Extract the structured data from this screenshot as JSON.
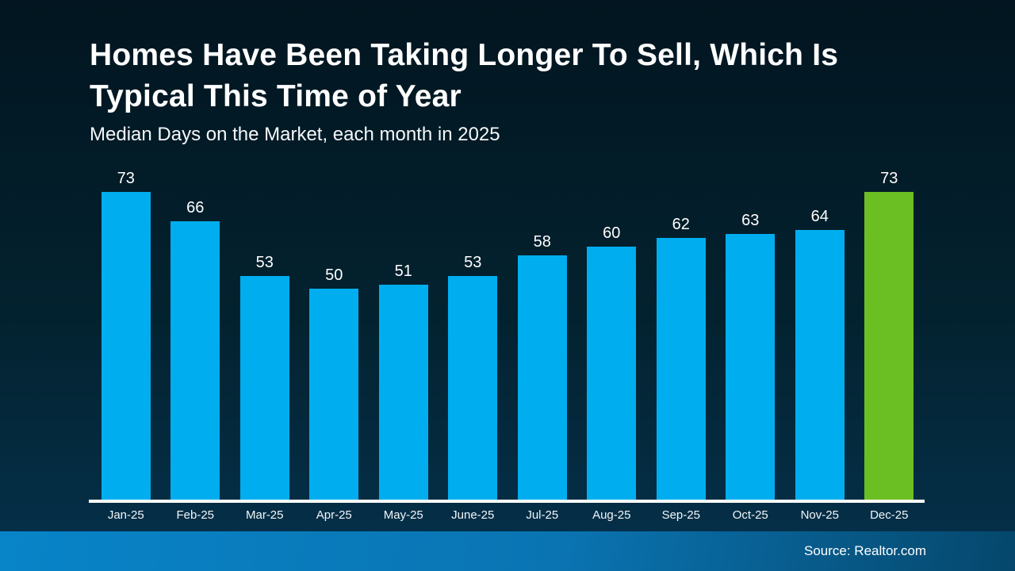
{
  "title": {
    "line1": "Homes Have Been Taking Longer To Sell, Which Is",
    "line2": "Typical This Time of Year",
    "subtitle": "Median Days on the Market, each month in 2025"
  },
  "footer": {
    "source": "Source: Realtor.com"
  },
  "colors": {
    "bar": "#00AEEF",
    "bar_highlight": "#6CBF23",
    "background_top": "#021520",
    "background_bottom": "#05304A",
    "axis_line": "#FFFFFF",
    "footer_gradient_left": "#0884C8",
    "footer_gradient_right": "#05476C",
    "text": "#FFFFFF"
  },
  "chart_data": {
    "type": "bar",
    "title": "Homes Have Been Taking Longer To Sell, Which Is Typical This Time of Year",
    "subtitle": "Median Days on the Market, each month in 2025",
    "categories": [
      "Jan-25",
      "Feb-25",
      "Mar-25",
      "Apr-25",
      "May-25",
      "June-25",
      "Jul-25",
      "Aug-25",
      "Sep-25",
      "Oct-25",
      "Nov-25",
      "Dec-25"
    ],
    "values": [
      73,
      66,
      53,
      50,
      51,
      53,
      58,
      60,
      62,
      63,
      64,
      73
    ],
    "highlight_index": 11,
    "value_labels": true,
    "xlabel": "",
    "ylabel": "",
    "ylim": [
      0,
      76
    ],
    "grid": false,
    "legend": false
  }
}
